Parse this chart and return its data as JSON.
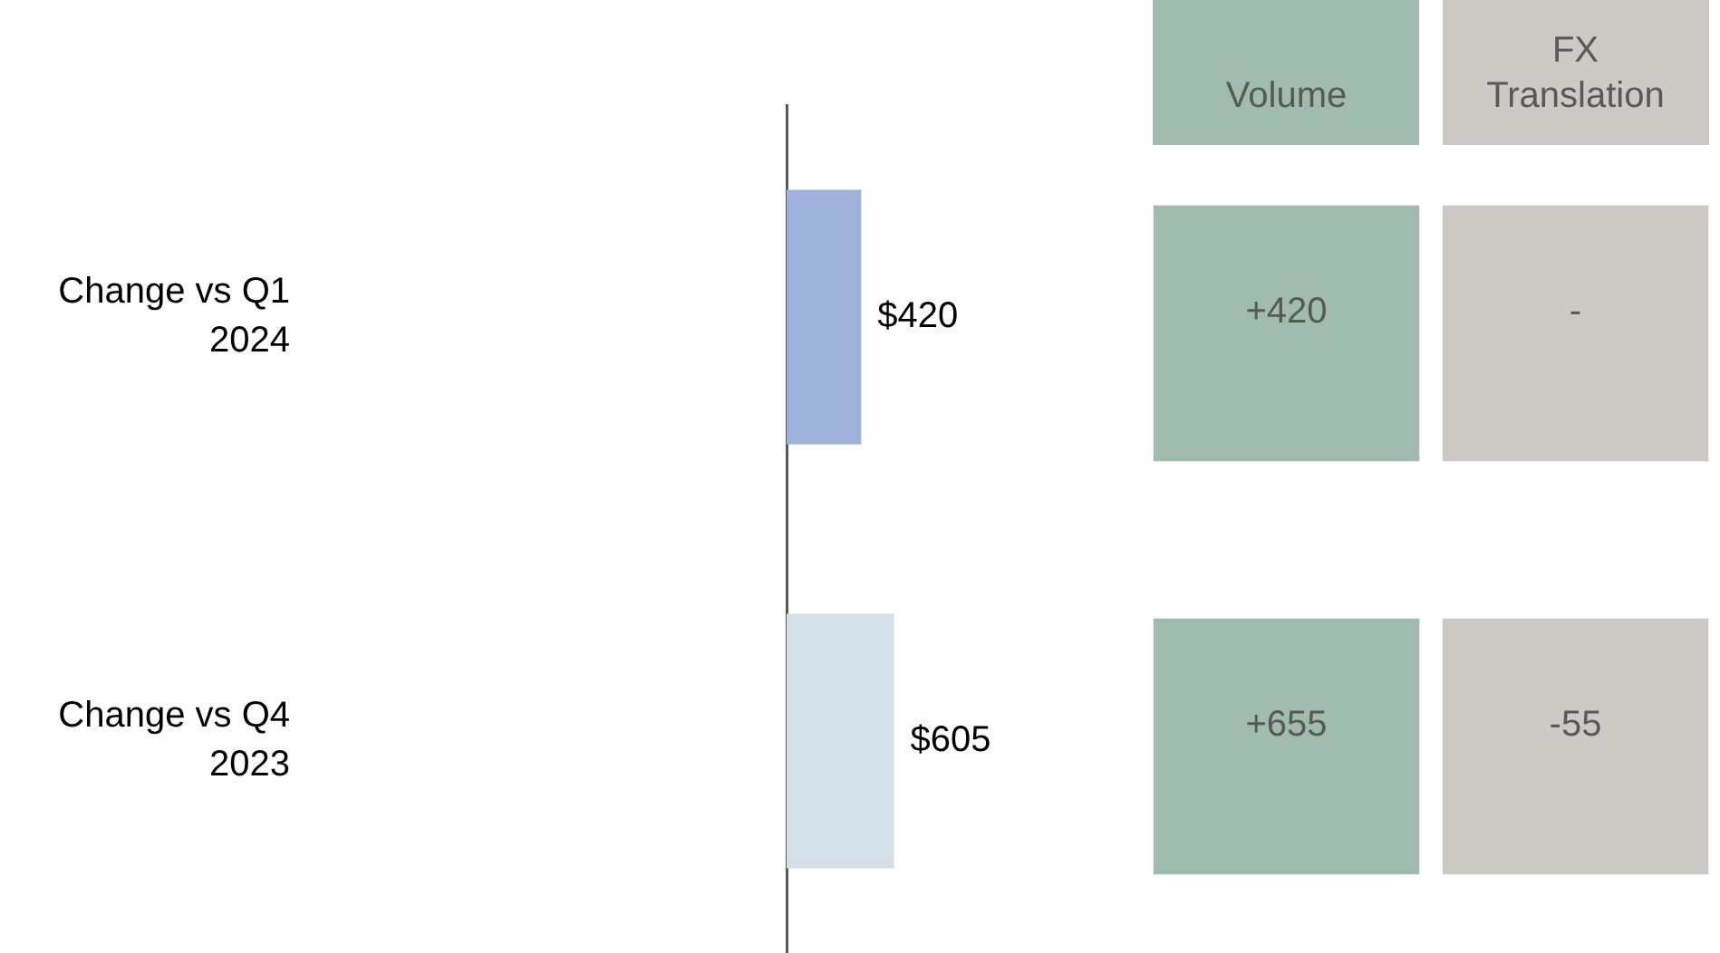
{
  "chart_data": [
    {
      "type": "bar",
      "orientation": "horizontal",
      "categories": [
        "Change vs Q1 2024",
        "Change vs Q4 2023"
      ],
      "values": [
        420,
        605
      ],
      "colors": [
        "#9db1da",
        "#d3e0e7"
      ],
      "value_labels": [
        "$420",
        "$605"
      ],
      "tick_labels": "y"
    },
    {
      "type": "other",
      "categories": [
        "Volume",
        "FX Translation"
      ],
      "annotations": [
        "+420",
        "-",
        "+655",
        "-55"
      ],
      "colors": [
        "#9fbcaf",
        "#cdc9c4"
      ]
    }
  ]
}
